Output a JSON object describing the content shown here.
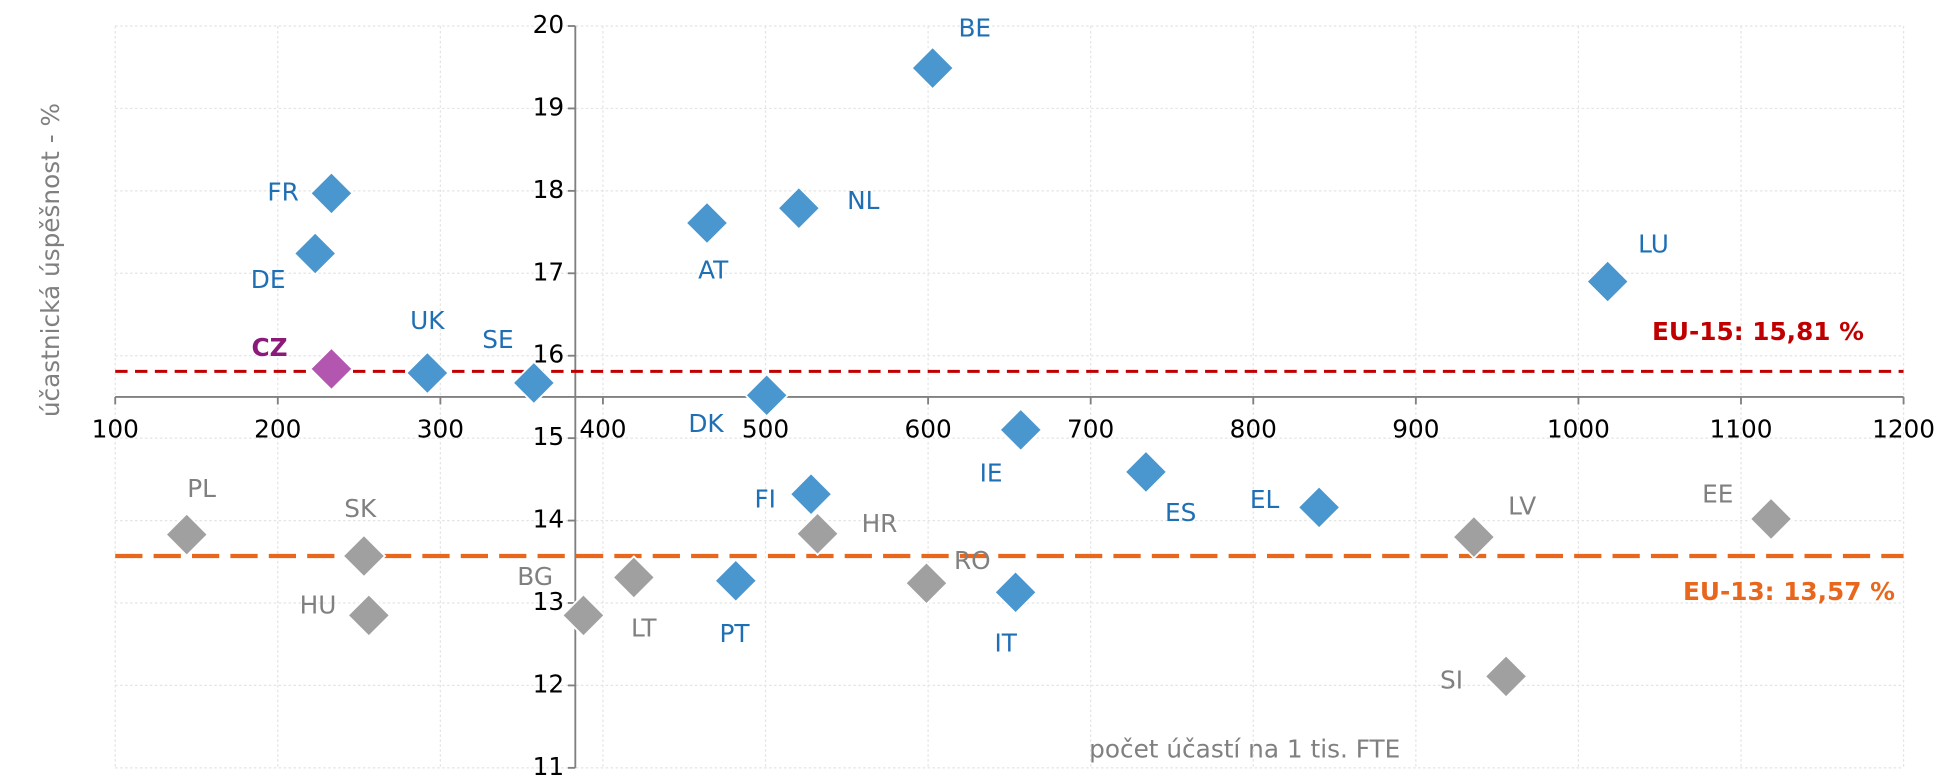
{
  "chart_data": {
    "type": "scatter",
    "x_label": "počet účastí na 1 tis. FTE",
    "y_label": "účastnická úspěšnost - %",
    "xlim": [
      100,
      1200
    ],
    "xticks": [
      100,
      200,
      300,
      400,
      500,
      600,
      700,
      800,
      900,
      1000,
      1100,
      1200
    ],
    "ylim": [
      11,
      20
    ],
    "yticks": [
      11,
      12,
      13,
      14,
      15,
      16,
      17,
      18,
      19,
      20
    ],
    "x_axis_at_y": 15.5,
    "y_axis_at_x": 383,
    "grid": true,
    "series": [
      {
        "color": "#4a96cf",
        "label_color": "#1f6fb5",
        "labels": [
          "FR",
          "DE",
          "UK",
          "SE",
          "DK",
          "AT",
          "NL",
          "BE",
          "LU",
          "IE",
          "ES",
          "EL",
          "FI",
          "PT",
          "IT"
        ],
        "x": [
          233,
          223,
          292,
          357.5,
          500.7,
          464,
          520.5,
          602.8,
          1018,
          657,
          734,
          840.5,
          528,
          481.7,
          653.8
        ],
        "y": [
          17.97,
          17.24,
          15.79,
          15.67,
          15.52,
          17.61,
          17.79,
          19.49,
          16.9,
          15.1,
          14.59,
          14.16,
          14.32,
          13.27,
          13.13
        ]
      },
      {
        "color": "#a0a0a0",
        "label_color": "#808080",
        "labels": [
          "PL",
          "SK",
          "HU",
          "BG",
          "LT",
          "HR",
          "RO",
          "LV",
          "SI",
          "EE"
        ],
        "x": [
          144,
          253,
          256,
          388,
          419,
          532,
          599,
          935.7,
          955.5,
          1118.5
        ],
        "y": [
          13.83,
          13.57,
          12.85,
          12.85,
          13.31,
          13.84,
          13.24,
          13.8,
          12.11,
          14.02
        ]
      },
      {
        "color": "#b356b0",
        "label_color": "#8b1a7a",
        "label_bold": true,
        "labels": [
          "CZ"
        ],
        "x": [
          233
        ],
        "y": [
          15.84
        ]
      }
    ],
    "reference_lines": [
      {
        "value": 15.81,
        "label": "EU-15: 15,81 %",
        "color": "#c00000",
        "dash": "short"
      },
      {
        "value": 13.57,
        "label": "EU-13: 13,57 %",
        "color": "#e8671c",
        "dash": "long"
      }
    ]
  }
}
